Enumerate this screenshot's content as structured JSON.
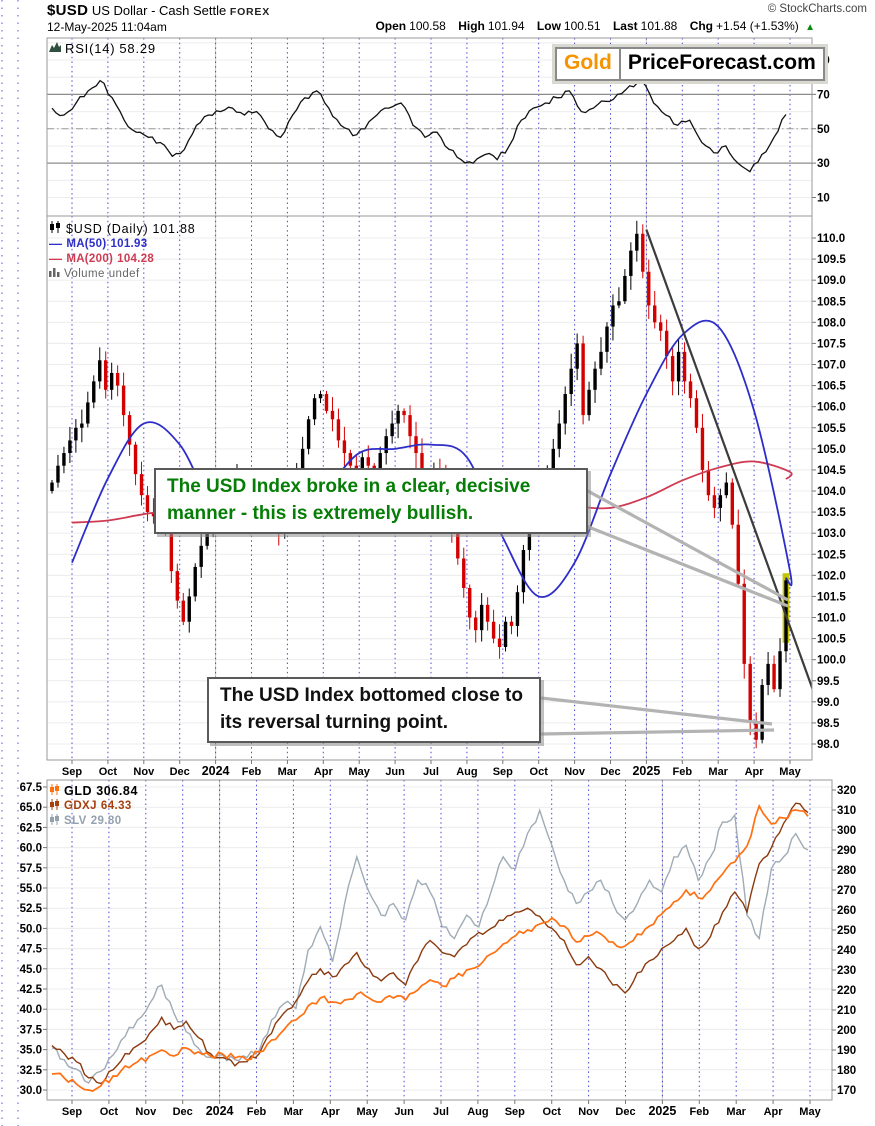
{
  "header": {
    "symbol": "$USD",
    "name": "US Dollar - Cash Settle",
    "exchange": "FOREX",
    "copyright": "© StockCharts.com",
    "datetime": "12-May-2025 11:04am",
    "open_label": "Open",
    "open": "100.58",
    "high_label": "High",
    "high": "101.94",
    "low_label": "Low",
    "low": "100.51",
    "last_label": "Last",
    "last": "101.88",
    "chg_label": "Chg",
    "chg": "+1.54 (+1.53%)",
    "chg_triangle": "▲"
  },
  "logo": {
    "gold": "Gold",
    "rest": "PriceForecast.com"
  },
  "rsi_legend": {
    "label": "RSI(14)",
    "value": "58.29"
  },
  "main_legend": {
    "usd_label": "$USD (Daily)",
    "usd_value": "101.88",
    "ma50_label": "MA(50)",
    "ma50_value": "101.93",
    "ma200_label": "MA(200)",
    "ma200_value": "104.28",
    "volume_label": "Volume",
    "volume_value": "undef"
  },
  "bottom_legend": {
    "gld_label": "GLD",
    "gld_value": "306.84",
    "gdxj_label": "GDXJ",
    "gdxj_value": "64.33",
    "slv_label": "SLV",
    "slv_value": "29.80"
  },
  "colors": {
    "candle_up": "#000000",
    "candle_down": "#d40000",
    "ma50": "#2d2dc9",
    "ma200": "#cf3b52",
    "rsi_line": "#111111",
    "gld": "#ff7011",
    "gdxj": "#8b3a0e",
    "slv": "#9fabb5",
    "gdxj_text": "#a8400e",
    "slv_text": "#93a1ad",
    "grid_month": "#2b2bd0",
    "grid_light": "#ececec",
    "year_line": "#cccccc",
    "level_line": "#8c8c8c",
    "border": "#9a9a9a",
    "annotation_green": "#067d06",
    "annotation_black": "#111111",
    "highlight": "#c6c600",
    "trend_line": "#3c3c3c",
    "callout": "#b3b3b3",
    "chg_up": "#0a8a0a",
    "volume_icon": "#666666",
    "rsi_icon": "#2f4f3f",
    "logo_gold": "#f59300",
    "copyright": "#444444"
  },
  "chart_data": [
    {
      "type": "line",
      "title": "RSI(14)",
      "last_value": 58.29,
      "ylim": [
        0,
        100
      ],
      "yticks": [
        90,
        70,
        50,
        30,
        10
      ],
      "levels": {
        "overbought": 70,
        "midline": 50,
        "oversold": 30
      },
      "legend_position": "top-left",
      "grid": true,
      "series": [
        {
          "name": "RSI(14)",
          "values": [
            62,
            58,
            65,
            72,
            78,
            68,
            55,
            48,
            45,
            42,
            34,
            38,
            52,
            58,
            60,
            62,
            58,
            60,
            50,
            45,
            58,
            68,
            72,
            62,
            52,
            46,
            50,
            58,
            62,
            65,
            52,
            45,
            48,
            38,
            32,
            30,
            35,
            32,
            40,
            55,
            62,
            65,
            68,
            72,
            60,
            62,
            66,
            70,
            75,
            78,
            65,
            58,
            52,
            55,
            42,
            36,
            40,
            30,
            25,
            35,
            45,
            58.29
          ]
        }
      ]
    },
    {
      "type": "candlestick",
      "title": "$USD (Daily)",
      "ylim": [
        98.0,
        110.0
      ],
      "ytick_step": 0.5,
      "yticks": [
        "110.0",
        "109.5",
        "109.0",
        "108.5",
        "108.0",
        "107.5",
        "107.0",
        "106.5",
        "106.0",
        "105.5",
        "105.0",
        "104.5",
        "104.0",
        "103.5",
        "103.0",
        "102.5",
        "102.0",
        "101.5",
        "101.0",
        "100.5",
        "100.0",
        "99.5",
        "99.0",
        "98.5",
        "98.0"
      ],
      "categories": [
        "Sep",
        "Oct",
        "Nov",
        "Dec",
        "2024",
        "Feb",
        "Mar",
        "Apr",
        "May",
        "Jun",
        "Jul",
        "Aug",
        "Sep",
        "Oct",
        "Nov",
        "Dec",
        "2025",
        "Feb",
        "Mar",
        "Apr",
        "May"
      ],
      "bold_categories": [
        "2024",
        "2025"
      ],
      "first_open": 104.0,
      "close": [
        104.2,
        104.6,
        104.9,
        105.2,
        105.5,
        105.6,
        106.1,
        106.6,
        107.1,
        106.4,
        106.8,
        106.5,
        105.8,
        105.1,
        104.4,
        103.9,
        103.5,
        103.4,
        103.6,
        103.0,
        102.1,
        101.4,
        100.9,
        101.5,
        102.2,
        102.7,
        103.1,
        103.4,
        103.6,
        103.5,
        104.0,
        104.3,
        103.9,
        104.1,
        104.3,
        104.1,
        103.7,
        103.3,
        103.0,
        103.6,
        104.1,
        104.4,
        105.0,
        105.7,
        106.2,
        106.3,
        105.9,
        105.7,
        105.2,
        104.9,
        104.6,
        104.4,
        104.8,
        104.6,
        104.5,
        104.9,
        105.3,
        105.6,
        105.9,
        105.8,
        105.3,
        104.9,
        104.4,
        104.2,
        104.5,
        104.3,
        103.8,
        103.1,
        102.4,
        101.7,
        101.0,
        100.7,
        101.3,
        100.9,
        100.5,
        100.3,
        100.9,
        100.8,
        101.6,
        102.6,
        103.4,
        103.9,
        104.2,
        104.3,
        105.0,
        105.6,
        106.3,
        106.9,
        107.5,
        105.8,
        106.4,
        106.9,
        107.3,
        107.9,
        108.4,
        108.5,
        109.1,
        109.7,
        110.1,
        109.2,
        108.4,
        108.0,
        107.8,
        107.2,
        106.6,
        107.3,
        106.6,
        106.2,
        105.5,
        104.5,
        103.9,
        103.6,
        103.9,
        104.2,
        103.2,
        101.8,
        99.9,
        98.5,
        98.1,
        99.4,
        99.9,
        99.3,
        100.2,
        101.88
      ],
      "last_close": 101.88,
      "ma50": {
        "label": "MA(50)",
        "end_value": 101.93,
        "monthly": [
          102.3,
          104.3,
          105.6,
          105.1,
          103.5,
          103.0,
          103.6,
          104.0,
          104.9,
          105.0,
          105.1,
          104.8,
          102.9,
          101.5,
          102.3,
          104.4,
          106.3,
          107.7,
          107.9,
          105.9,
          102.1
        ]
      },
      "ma200": {
        "label": "MA(200)",
        "end_value": 104.28,
        "monthly": [
          103.25,
          103.3,
          103.45,
          103.55,
          103.5,
          103.4,
          103.35,
          103.4,
          103.55,
          103.7,
          103.9,
          104.05,
          104.1,
          103.85,
          103.65,
          103.6,
          103.85,
          104.25,
          104.55,
          104.7,
          104.45
        ]
      },
      "trendline": {
        "from_month": 16.0,
        "from_value": 110.2,
        "to_month": 20.8,
        "to_value": 98.9
      },
      "highlight_last": true,
      "highlight_range": [
        100.4,
        102.05
      ],
      "annotations": [
        {
          "text": "The USD Index broke in a clear, decisive manner - this is extremely bullish."
        },
        {
          "text": "The USD Index bottomed close to its reversal turning point."
        }
      ]
    },
    {
      "type": "line",
      "title": "GLD / GDXJ / SLV",
      "categories": [
        "Sep",
        "Oct",
        "Nov",
        "Dec",
        "2024",
        "Feb",
        "Mar",
        "Apr",
        "May",
        "Jun",
        "Jul",
        "Aug",
        "Sep",
        "Oct",
        "Nov",
        "Dec",
        "2025",
        "Feb",
        "Mar",
        "Apr",
        "May"
      ],
      "left_axis": {
        "range": [
          30.0,
          67.5
        ],
        "ticks": [
          "67.5",
          "65.0",
          "62.5",
          "60.0",
          "57.5",
          "55.0",
          "52.5",
          "50.0",
          "47.5",
          "45.0",
          "42.5",
          "40.0",
          "37.5",
          "35.0",
          "32.5",
          "30.0"
        ]
      },
      "right_axis": {
        "range": [
          170,
          320
        ],
        "ticks": [
          "320",
          "310",
          "300",
          "290",
          "280",
          "270",
          "260",
          "250",
          "240",
          "230",
          "220",
          "210",
          "200",
          "190",
          "180",
          "170"
        ]
      },
      "series": [
        {
          "name": "SLV",
          "last": 29.8,
          "scale": "slv",
          "slv_scale": [
            19.5,
            32.5
          ],
          "values": [
            21.3,
            20.8,
            20.4,
            19.8,
            20.3,
            21,
            21.8,
            22.5,
            23.2,
            24,
            22.8,
            22,
            21.3,
            20.9,
            21,
            20.8,
            20.9,
            21.2,
            22.5,
            23.2,
            23,
            25.5,
            26.5,
            25,
            27.5,
            29.5,
            28,
            27,
            27.5,
            26.8,
            28.5,
            28,
            26.5,
            26,
            27,
            26.5,
            28,
            29.5,
            29,
            30.5,
            31.5,
            30,
            28.5,
            27.5,
            28,
            28.5,
            27.5,
            26.8,
            27.5,
            28.5,
            28,
            29.5,
            30,
            28.5,
            29.5,
            31,
            31.3,
            27,
            26,
            29,
            29.5,
            30.5,
            29.8
          ]
        },
        {
          "name": "GDXJ",
          "last": 64.33,
          "scale": "left",
          "values": [
            35.5,
            34.5,
            33.5,
            31.5,
            30.8,
            32.5,
            34.5,
            35.5,
            37,
            39,
            37.5,
            38.5,
            36.5,
            34.5,
            34,
            33,
            33.5,
            34.5,
            37,
            39.5,
            41,
            43.5,
            45,
            44,
            45.5,
            47,
            45,
            43.5,
            44.5,
            43,
            46,
            48.5,
            47,
            46.5,
            48,
            49.5,
            50,
            51,
            52,
            52.5,
            51.5,
            50,
            48.5,
            45.5,
            46.5,
            45,
            43,
            42,
            44.5,
            46,
            47.5,
            48.5,
            50,
            47.5,
            49,
            52,
            54.5,
            52,
            58,
            60,
            63,
            65.5,
            64.33
          ]
        },
        {
          "name": "GLD",
          "last": 306.84,
          "scale": "right",
          "values": [
            178,
            176,
            173,
            170,
            172,
            177,
            182,
            184,
            187,
            190,
            187,
            191,
            189,
            187,
            188,
            186,
            185,
            189,
            195,
            200,
            205,
            212,
            216,
            214,
            215,
            218,
            216,
            214,
            216,
            215,
            220,
            225,
            222,
            226,
            230,
            232,
            238,
            243,
            247,
            250,
            253,
            256,
            252,
            244,
            247,
            248,
            244,
            242,
            248,
            252,
            258,
            264,
            270,
            266,
            270,
            278,
            284,
            292,
            312,
            303,
            306,
            310,
            306.84
          ]
        }
      ]
    }
  ]
}
